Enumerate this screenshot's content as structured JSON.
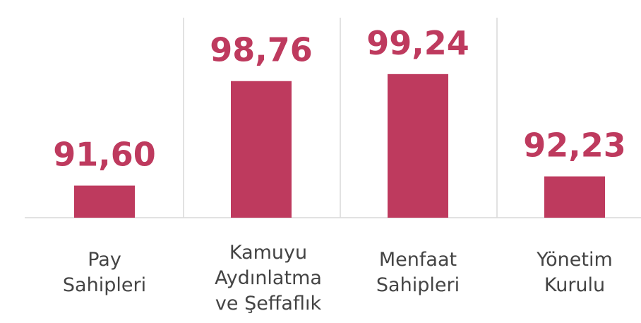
{
  "chart_data": {
    "type": "bar",
    "categories": [
      "Pay\nSahipleri",
      "Kamuyu\nAydınlatma\nve Şeffaflık",
      "Menfaat\nSahipleri",
      "Yönetim\nKurulu"
    ],
    "values": [
      91.6,
      98.76,
      99.24,
      92.23
    ],
    "value_labels": [
      "91,60",
      "98,76",
      "99,24",
      "92,23"
    ],
    "color": "#be3a5e",
    "ylim": [
      89.4,
      100.2
    ]
  }
}
